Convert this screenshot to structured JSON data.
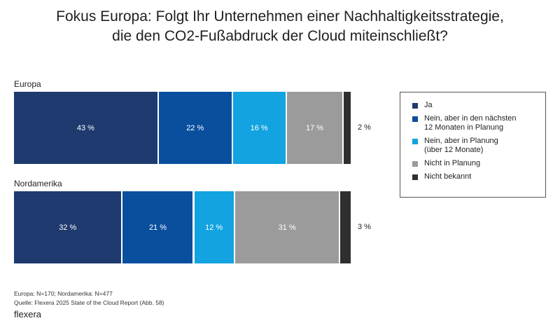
{
  "title_lines": [
    "Fokus Europa: Folgt Ihr Unternehmen einer Nachhaltigkeitsstrategie,",
    "die den CO2-Fußabdruck der Cloud miteinschließt?"
  ],
  "chart_data": {
    "type": "bar",
    "orientation": "horizontal-stacked-100",
    "categories": [
      "Europa",
      "Nordamerika"
    ],
    "series": [
      {
        "name": "Ja",
        "color": "#1e3a6e",
        "values": [
          43,
          32
        ],
        "labels": [
          "43 %",
          "32 %"
        ]
      },
      {
        "name": "Nein, aber in den nächsten\n12 Monaten in Planung",
        "color": "#0a4f9e",
        "values": [
          22,
          21
        ],
        "labels": [
          "22 %",
          "21 %"
        ]
      },
      {
        "name": "Nein, aber in Planung\n(über 12 Monate)",
        "color": "#12a3e0",
        "values": [
          16,
          12
        ],
        "labels": [
          "16 %",
          "12 %"
        ]
      },
      {
        "name": "Nicht in Planung",
        "color": "#9b9b9b",
        "values": [
          17,
          31
        ],
        "labels": [
          "17 %",
          "31 %"
        ]
      },
      {
        "name": "Nicht bekannt",
        "color": "#2f2f2f",
        "values": [
          2,
          3
        ],
        "labels": [
          "2 %",
          "3 %"
        ]
      }
    ],
    "legend_position": "right",
    "grid": false
  },
  "footnotes": [
    "Europa: N=170; Nordamerika: N=477",
    "Quelle: Flexera 2025 State of the Cloud Report (Abb. 58)"
  ],
  "brand": "flexera"
}
